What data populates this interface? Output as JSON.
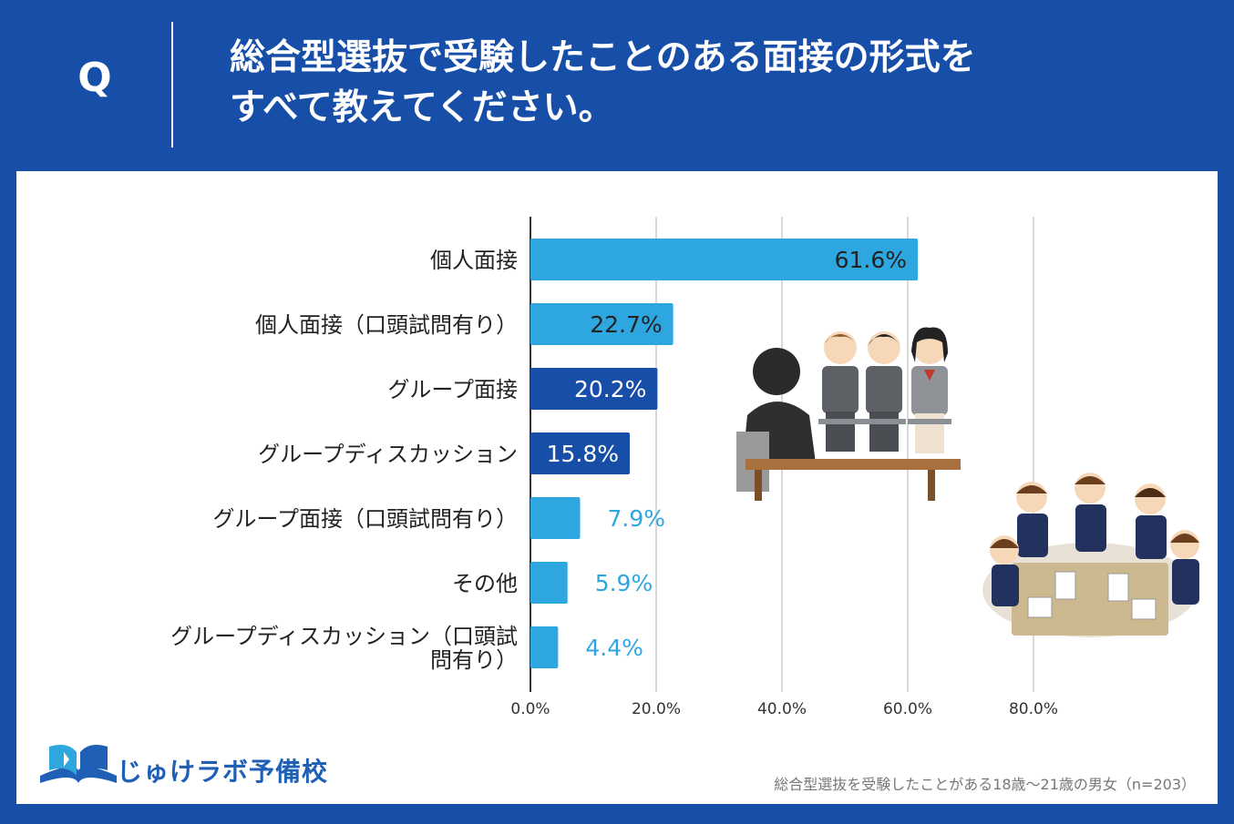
{
  "header": {
    "q_label": "Q",
    "question_line1": "総合型選抜で受験したことのある面接の形式を",
    "question_line2": "すべて教えてください。"
  },
  "chart_data": {
    "type": "bar",
    "orientation": "horizontal",
    "categories": [
      [
        "個人面接"
      ],
      [
        "個人面接（口頭試問有り）"
      ],
      [
        "グループ面接"
      ],
      [
        "グループディスカッション"
      ],
      [
        "グループ面接（口頭試問有り）"
      ],
      [
        "その他"
      ],
      [
        "グループディスカッション（口頭試",
        "問有り）"
      ]
    ],
    "values": [
      61.6,
      22.7,
      20.2,
      15.8,
      7.9,
      5.9,
      4.4
    ],
    "value_labels": [
      "61.6%",
      "22.7%",
      "20.2%",
      "15.8%",
      "7.9%",
      "5.9%",
      "4.4%"
    ],
    "bar_colors": [
      "#2ea7e0",
      "#2ea7e0",
      "#174fa8",
      "#174fa8",
      "#2ea7e0",
      "#2ea7e0",
      "#2ea7e0"
    ],
    "label_inside": [
      true,
      true,
      true,
      true,
      false,
      false,
      false
    ],
    "inside_label_colors": [
      "#222222",
      "#222222",
      "#ffffff",
      "#ffffff",
      "",
      "",
      ""
    ],
    "outside_label_color": "#2ea7e0",
    "xlim": [
      0,
      80
    ],
    "ticks": [
      0,
      20,
      40,
      60,
      80
    ],
    "tick_labels": [
      "0.0%",
      "20.0%",
      "40.0%",
      "60.0%",
      "80.0%"
    ],
    "grid": true
  },
  "logo": {
    "text": "じゅけラボ予備校"
  },
  "footnote": "総合型選抜を受験したことがある18歳～21歳の男女（n=203）",
  "colors": {
    "header_bg": "#174fa8",
    "bar_light": "#2ea7e0",
    "bar_dark": "#174fa8"
  },
  "illustrations": [
    "individual-interview-illustration",
    "group-discussion-illustration"
  ]
}
